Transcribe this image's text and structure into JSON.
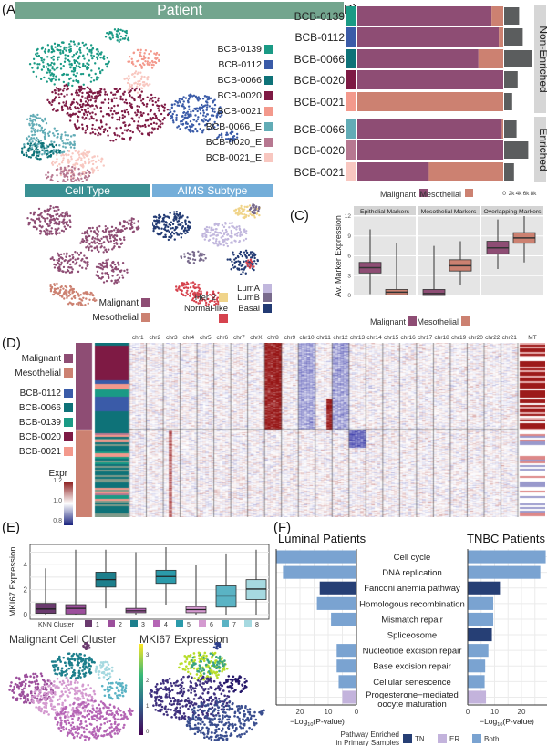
{
  "panel_labels": {
    "a": "(A)",
    "b": "(B)",
    "c": "(C)",
    "d": "(D)",
    "e": "(E)",
    "f": "(F)"
  },
  "chart_data": [
    {
      "id": "A",
      "type": "scatter",
      "title": "Patient",
      "legend": [
        {
          "name": "BCB-0139",
          "color": "#1a9a85"
        },
        {
          "name": "BCB-0112",
          "color": "#3a5ba8"
        },
        {
          "name": "BCB-0066",
          "color": "#0e7278"
        },
        {
          "name": "BCB-0020",
          "color": "#7e1a44"
        },
        {
          "name": "BCB-0021",
          "color": "#f3998c"
        },
        {
          "name": "BCB-0066_E",
          "color": "#62acb6"
        },
        {
          "name": "BCB-0020_E",
          "color": "#b77891"
        },
        {
          "name": "BCB-0021_E",
          "color": "#f8c7c0"
        }
      ],
      "subplots": [
        {
          "title": "Cell Type",
          "legend": [
            {
              "name": "Malignant",
              "color": "#8e4d74"
            },
            {
              "name": "Mesothelial",
              "color": "#cc8171"
            }
          ]
        },
        {
          "title": "AIMS Subtype",
          "legend": [
            {
              "name": "LumA",
              "color": "#c1b7dd"
            },
            {
              "name": "Her 2",
              "color": "#f0d48a"
            },
            {
              "name": "LumB",
              "color": "#786a8c"
            },
            {
              "name": "Normal-like",
              "color": "#d6434e"
            },
            {
              "name": "Basal",
              "color": "#223a73"
            }
          ]
        }
      ]
    },
    {
      "id": "B",
      "type": "bar",
      "stacked": true,
      "categories": [
        "BCB-0139",
        "BCB-0112",
        "BCB-0066",
        "BCB-0020",
        "BCB-0021",
        "BCB-0066",
        "BCB-0020",
        "BCB-0021"
      ],
      "groups": [
        "Non-Enriched",
        "Non-Enriched",
        "Non-Enriched",
        "Non-Enriched",
        "Non-Enriched",
        "Enriched",
        "Enriched",
        "Enriched"
      ],
      "group_labels": [
        "Non-Enriched",
        "Enriched"
      ],
      "swatch_colors": [
        "#1a9a85",
        "#3a5ba8",
        "#0e7278",
        "#7e1a44",
        "#f3998c",
        "#62acb6",
        "#b77891",
        "#f8c7c0"
      ],
      "series": [
        {
          "name": "Malignant",
          "color": "#8e4d74",
          "values": [
            0.92,
            0.97,
            0.83,
            1.0,
            0.0,
            0.99,
            1.0,
            0.49
          ]
        },
        {
          "name": "Mesothelial",
          "color": "#cc8171",
          "values": [
            0.08,
            0.03,
            0.17,
            0.0,
            1.0,
            0.01,
            0.0,
            0.51
          ]
        }
      ],
      "cell_counts": [
        4100,
        5100,
        7700,
        3700,
        2200,
        3400,
        6600,
        2700
      ],
      "count_ticks": [
        "0",
        "2k",
        "4k",
        "6k",
        "8k"
      ],
      "count_max": 8000
    },
    {
      "id": "C",
      "type": "box",
      "ylabel": "Av. Marker Expression",
      "ylim": [
        0,
        12
      ],
      "yticks": [
        0,
        3,
        6,
        9,
        12
      ],
      "facets": [
        "Epithelial Markers",
        "Mesothelial Markers",
        "Overlapping Markers"
      ],
      "legend": [
        {
          "name": "Malignant",
          "color": "#8e4d74"
        },
        {
          "name": "Mesothelial",
          "color": "#cc8171"
        }
      ],
      "boxes": [
        {
          "facet": 0,
          "group": 0,
          "q1": 3.4,
          "median": 4.2,
          "q3": 5.0,
          "lo": 0.2,
          "hi": 7.5,
          "out_max": 10
        },
        {
          "facet": 0,
          "group": 1,
          "q1": 0.1,
          "median": 0.5,
          "q3": 0.9,
          "lo": 0,
          "hi": 2.0,
          "out_max": 8
        },
        {
          "facet": 1,
          "group": 0,
          "q1": 0,
          "median": 0.3,
          "q3": 0.9,
          "lo": 0,
          "hi": 2.2,
          "out_max": 7.5
        },
        {
          "facet": 1,
          "group": 1,
          "q1": 3.7,
          "median": 4.5,
          "q3": 5.4,
          "lo": 1.6,
          "hi": 8.2,
          "out_max": 8.2
        },
        {
          "facet": 2,
          "group": 0,
          "q1": 6.3,
          "median": 7.2,
          "q3": 8.2,
          "lo": 4.0,
          "hi": 11.5,
          "out_max": 11.5
        },
        {
          "facet": 2,
          "group": 1,
          "q1": 7.9,
          "median": 8.7,
          "q3": 9.5,
          "lo": 5.0,
          "hi": 12.0,
          "out_max": 12.0
        }
      ]
    },
    {
      "id": "D",
      "type": "heatmap",
      "columns": [
        "chr1",
        "chr2",
        "chr3",
        "chr4",
        "chr5",
        "chr6",
        "chr7",
        "chrX",
        "chr8",
        "chr9",
        "chr10",
        "chr11",
        "chr12",
        "chr13",
        "chr14",
        "chr15",
        "chr16",
        "chr17",
        "chr18",
        "chr19",
        "chr20",
        "chr22",
        "chr21",
        "MT"
      ],
      "row_legend_celltype": [
        {
          "name": "Malignant",
          "color": "#8e4d74"
        },
        {
          "name": "Mesothelial",
          "color": "#cc8171"
        }
      ],
      "row_legend_patient": [
        {
          "name": "BCB-0112",
          "color": "#3a5ba8"
        },
        {
          "name": "BCB-0066",
          "color": "#0e7278"
        },
        {
          "name": "BCB-0139",
          "color": "#1a9a85"
        },
        {
          "name": "BCB-0020",
          "color": "#7e1a44"
        },
        {
          "name": "BCB-0021",
          "color": "#f3998c"
        }
      ],
      "scale_title": "Expr",
      "scale_ticks": [
        "1.2",
        "1.0",
        "0.8"
      ],
      "scale_colors": [
        "#8b1a1a",
        "#ffffff",
        "#1a237e"
      ]
    },
    {
      "id": "E",
      "type": "box",
      "ylabel": "MKI67 Expression",
      "ylim": [
        0,
        5.5
      ],
      "yticks": [
        0,
        2,
        4
      ],
      "legend_title": "KNN Cluster",
      "categories": [
        "1",
        "2",
        "3",
        "4",
        "5",
        "6",
        "7",
        "8"
      ],
      "colors": [
        "#6a3a6e",
        "#9c4f9c",
        "#1d7f8c",
        "#b565b5",
        "#2b9aaa",
        "#d49ad0",
        "#5ab3c4",
        "#a6d9e0"
      ],
      "boxes": [
        {
          "q1": 0.1,
          "median": 0.45,
          "q3": 0.9,
          "lo": 0,
          "hi": 2.2,
          "out_max": 3.7
        },
        {
          "q1": 0.05,
          "median": 0.5,
          "q3": 0.8,
          "lo": 0,
          "hi": 1.9,
          "out_max": 5.2
        },
        {
          "q1": 2.2,
          "median": 2.8,
          "q3": 3.4,
          "lo": 0.5,
          "hi": 5.2,
          "out_max": 5.2
        },
        {
          "q1": 0.15,
          "median": 0.3,
          "q3": 0.5,
          "lo": 0,
          "hi": 1.0,
          "out_max": 5.0
        },
        {
          "q1": 2.5,
          "median": 3.05,
          "q3": 3.55,
          "lo": 0.8,
          "hi": 5.4,
          "out_max": 5.4
        },
        {
          "q1": 0.15,
          "median": 0.4,
          "q3": 0.65,
          "lo": 0,
          "hi": 1.3,
          "out_max": 4.0
        },
        {
          "q1": 0.6,
          "median": 1.5,
          "q3": 2.3,
          "lo": 0,
          "hi": 4.9,
          "out_max": 4.9
        },
        {
          "q1": 1.2,
          "median": 2.05,
          "q3": 2.8,
          "lo": 0,
          "hi": 5.2,
          "out_max": 5.2
        }
      ],
      "subplots": [
        {
          "title": "Malignant Cell Cluster"
        },
        {
          "title": "MKI67 Expression",
          "colorbar_ticks": [
            "3",
            "2",
            "1",
            "0"
          ]
        }
      ]
    },
    {
      "id": "F",
      "type": "bar",
      "orientation": "horizontal",
      "xlabel": "−Log10(P-value)",
      "xlabel_main": "−Log",
      "xlabel_sub": "10",
      "xlabel_tail": "(P-value)",
      "panels": [
        "Luminal Patients",
        "TNBC Patients"
      ],
      "categories": [
        "Cell cycle",
        "DNA replication",
        "Fanconi anemia pathway",
        "Homologous recombination",
        "Mismatch repair",
        "Spliceosome",
        "Nucleotide excision repair",
        "Base excision repair",
        "Cellular senescence",
        "Progesterone−mediated oocyte maturation"
      ],
      "enriched_in": [
        "Both",
        "Both",
        "TN",
        "Both",
        "Both",
        "TN",
        "Both",
        "Both",
        "Both",
        "ER"
      ],
      "luminal": [
        29,
        26,
        13,
        14,
        9,
        0,
        7,
        7,
        6.3,
        5
      ],
      "tnbc": [
        29,
        27,
        12,
        9.5,
        9.5,
        9,
        7.7,
        6.5,
        6.3,
        6.8
      ],
      "xticks_luminal": [
        "20",
        "10",
        "0"
      ],
      "xticks_tnbc": [
        "0",
        "10",
        "20"
      ],
      "legend_title": "Pathway Enriched in Primary Samples",
      "legend": [
        {
          "name": "TN",
          "color": "#263f75"
        },
        {
          "name": "ER",
          "color": "#c3b3dc"
        },
        {
          "name": "Both",
          "color": "#7aa3d1"
        }
      ]
    }
  ]
}
